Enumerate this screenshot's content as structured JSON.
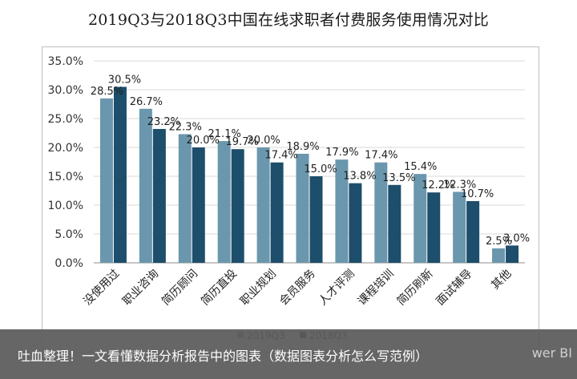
{
  "chart_data": {
    "type": "bar",
    "title": "2019Q3与2018Q3中国在线求职者付费服务使用情况对比",
    "categories": [
      "没使用过",
      "职业咨询",
      "简历顾问",
      "简历直投",
      "职业规划",
      "会员服务",
      "人才评测",
      "课程培训",
      "简历刷新",
      "面试辅导",
      "其他"
    ],
    "series": [
      {
        "name": "2019Q3",
        "color": "#6a97ad",
        "values": [
          28.5,
          26.7,
          22.3,
          21.1,
          20.0,
          18.9,
          17.9,
          17.4,
          15.4,
          12.3,
          2.5
        ]
      },
      {
        "name": "2018Q3",
        "color": "#1d4e6b",
        "values": [
          30.5,
          23.2,
          20.0,
          19.7,
          17.4,
          15.0,
          13.8,
          13.5,
          12.2,
          10.7,
          3.0
        ]
      }
    ],
    "y_ticks": [
      "0.0%",
      "5.0%",
      "10.0%",
      "15.0%",
      "20.0%",
      "25.0%",
      "30.0%",
      "35.0%"
    ],
    "ylim": [
      0,
      35
    ],
    "grid": true,
    "legend_position": "bottom",
    "xlabel": "",
    "ylabel": ""
  },
  "caption": "吐血整理！一文看懂数据分析报告中的图表（数据图表分析怎么写范例）",
  "watermark": "wer BI"
}
